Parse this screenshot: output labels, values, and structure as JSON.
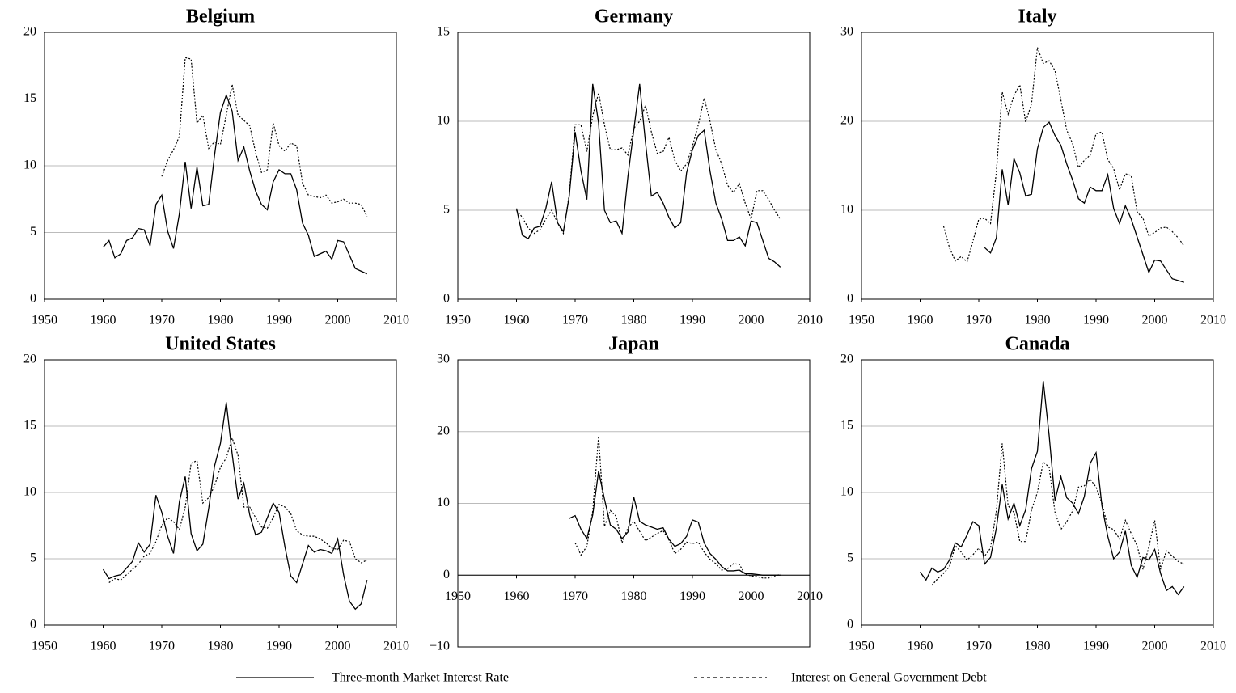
{
  "chart_data": [
    {
      "type": "line",
      "title": "Belgium",
      "x": [
        1960,
        1961,
        1962,
        1963,
        1964,
        1965,
        1966,
        1967,
        1968,
        1969,
        1970,
        1971,
        1972,
        1973,
        1974,
        1975,
        1976,
        1977,
        1978,
        1979,
        1980,
        1981,
        1982,
        1983,
        1984,
        1985,
        1986,
        1987,
        1988,
        1989,
        1990,
        1991,
        1992,
        1993,
        1994,
        1995,
        1996,
        1997,
        1998,
        1999,
        2000,
        2001,
        2002,
        2003,
        2004,
        2005
      ],
      "xlim": [
        1950,
        2010
      ],
      "xticks": [
        1950,
        1960,
        1970,
        1980,
        1990,
        2000,
        2010
      ],
      "ylim": [
        0,
        20
      ],
      "yticks": [
        0,
        5,
        10,
        15,
        20
      ],
      "grid": true,
      "series": [
        {
          "name": "Three-month Market Interest Rate",
          "style": "solid",
          "color": "#000000",
          "values": [
            3.9,
            4.4,
            3.1,
            3.4,
            4.4,
            4.6,
            5.3,
            5.2,
            4.0,
            7.1,
            7.8,
            5.1,
            3.8,
            6.4,
            10.3,
            6.8,
            9.9,
            7.0,
            7.1,
            10.8,
            14.0,
            15.3,
            14.1,
            10.4,
            11.4,
            9.6,
            8.1,
            7.1,
            6.7,
            8.8,
            9.7,
            9.4,
            9.4,
            8.2,
            5.7,
            4.8,
            3.2,
            3.4,
            3.6,
            3.0,
            4.4,
            4.3,
            3.3,
            2.3,
            2.1,
            1.9
          ]
        },
        {
          "name": "Interest on General Government Debt",
          "style": "dotted",
          "color": "#000000",
          "values": [
            null,
            null,
            null,
            null,
            null,
            null,
            null,
            null,
            null,
            null,
            9.2,
            10.4,
            11.2,
            12.2,
            18.1,
            18.0,
            13.2,
            13.8,
            11.3,
            11.8,
            11.6,
            13.8,
            16.1,
            13.8,
            13.4,
            13.0,
            11.0,
            9.5,
            9.7,
            13.2,
            11.5,
            11.1,
            11.7,
            11.5,
            8.7,
            7.8,
            7.7,
            7.6,
            7.8,
            7.2,
            7.3,
            7.5,
            7.2,
            7.2,
            7.1,
            6.2
          ]
        }
      ]
    },
    {
      "type": "line",
      "title": "Germany",
      "x": [
        1960,
        1961,
        1962,
        1963,
        1964,
        1965,
        1966,
        1967,
        1968,
        1969,
        1970,
        1971,
        1972,
        1973,
        1974,
        1975,
        1976,
        1977,
        1978,
        1979,
        1980,
        1981,
        1982,
        1983,
        1984,
        1985,
        1986,
        1987,
        1988,
        1989,
        1990,
        1991,
        1992,
        1993,
        1994,
        1995,
        1996,
        1997,
        1998,
        1999,
        2000,
        2001,
        2002,
        2003,
        2004,
        2005
      ],
      "xlim": [
        1950,
        2010
      ],
      "xticks": [
        1950,
        1960,
        1970,
        1980,
        1990,
        2000,
        2010
      ],
      "ylim": [
        0,
        15
      ],
      "yticks": [
        0,
        5,
        10,
        15
      ],
      "grid": true,
      "series": [
        {
          "style": "solid",
          "color": "#000000",
          "values": [
            5.1,
            3.6,
            3.4,
            4.0,
            4.1,
            5.1,
            6.6,
            4.3,
            3.8,
            5.8,
            9.4,
            7.2,
            5.6,
            12.1,
            9.9,
            5.0,
            4.3,
            4.4,
            3.7,
            6.9,
            9.5,
            12.1,
            8.8,
            5.8,
            6.0,
            5.4,
            4.6,
            4.0,
            4.3,
            7.1,
            8.4,
            9.2,
            9.5,
            7.2,
            5.4,
            4.5,
            3.3,
            3.3,
            3.5,
            3.0,
            4.4,
            4.3,
            3.3,
            2.3,
            2.1,
            1.8
          ]
        },
        {
          "style": "dotted",
          "color": "#000000",
          "values": [
            5.0,
            4.6,
            4.0,
            3.7,
            3.9,
            4.5,
            5.0,
            4.3,
            3.7,
            5.9,
            9.8,
            9.8,
            8.3,
            10.3,
            11.6,
            9.8,
            8.4,
            8.4,
            8.5,
            8.1,
            9.6,
            10.0,
            10.9,
            9.4,
            8.2,
            8.3,
            9.1,
            7.8,
            7.2,
            7.6,
            8.6,
            9.8,
            11.3,
            10.0,
            8.4,
            7.6,
            6.4,
            6.0,
            6.5,
            5.4,
            4.5,
            6.1,
            6.1,
            5.6,
            5.0,
            4.5
          ]
        }
      ]
    },
    {
      "type": "line",
      "title": "Italy",
      "x": [
        1960,
        1961,
        1962,
        1963,
        1964,
        1965,
        1966,
        1967,
        1968,
        1969,
        1970,
        1971,
        1972,
        1973,
        1974,
        1975,
        1976,
        1977,
        1978,
        1979,
        1980,
        1981,
        1982,
        1983,
        1984,
        1985,
        1986,
        1987,
        1988,
        1989,
        1990,
        1991,
        1992,
        1993,
        1994,
        1995,
        1996,
        1997,
        1998,
        1999,
        2000,
        2001,
        2002,
        2003,
        2004,
        2005
      ],
      "xlim": [
        1950,
        2010
      ],
      "xticks": [
        1950,
        1960,
        1970,
        1980,
        1990,
        2000,
        2010
      ],
      "ylim": [
        0,
        30
      ],
      "yticks": [
        0,
        10,
        20,
        30
      ],
      "grid": true,
      "series": [
        {
          "style": "solid",
          "color": "#000000",
          "values": [
            null,
            null,
            null,
            null,
            null,
            null,
            null,
            null,
            null,
            null,
            null,
            5.8,
            5.2,
            6.9,
            14.6,
            10.6,
            15.8,
            14.2,
            11.6,
            11.8,
            16.9,
            19.3,
            19.9,
            18.4,
            17.3,
            15.2,
            13.4,
            11.3,
            10.8,
            12.6,
            12.2,
            12.2,
            14.0,
            10.2,
            8.5,
            10.5,
            9.0,
            7.0,
            5.0,
            3.0,
            4.4,
            4.3,
            3.3,
            2.3,
            2.1,
            1.9
          ]
        },
        {
          "style": "dotted",
          "color": "#000000",
          "values": [
            null,
            null,
            null,
            null,
            8.2,
            5.8,
            4.3,
            4.8,
            4.2,
            6.5,
            9.0,
            9.1,
            8.5,
            14.3,
            23.3,
            20.8,
            22.9,
            24.1,
            19.9,
            22.0,
            28.3,
            26.5,
            26.8,
            25.7,
            22.4,
            19.0,
            17.5,
            14.8,
            15.6,
            16.2,
            18.6,
            18.8,
            15.7,
            14.7,
            12.3,
            14.1,
            13.9,
            9.8,
            9.1,
            7.1,
            7.5,
            8.0,
            8.1,
            7.6,
            6.9,
            6.0
          ]
        }
      ]
    },
    {
      "type": "line",
      "title": "United States",
      "x": [
        1960,
        1961,
        1962,
        1963,
        1964,
        1965,
        1966,
        1967,
        1968,
        1969,
        1970,
        1971,
        1972,
        1973,
        1974,
        1975,
        1976,
        1977,
        1978,
        1979,
        1980,
        1981,
        1982,
        1983,
        1984,
        1985,
        1986,
        1987,
        1988,
        1989,
        1990,
        1991,
        1992,
        1993,
        1994,
        1995,
        1996,
        1997,
        1998,
        1999,
        2000,
        2001,
        2002,
        2003,
        2004,
        2005
      ],
      "xlim": [
        1950,
        2010
      ],
      "xticks": [
        1950,
        1960,
        1970,
        1980,
        1990,
        2000,
        2010
      ],
      "ylim": [
        0,
        20
      ],
      "yticks": [
        0,
        5,
        10,
        15,
        20
      ],
      "grid": true,
      "series": [
        {
          "style": "solid",
          "color": "#000000",
          "values": [
            4.2,
            3.5,
            3.7,
            3.8,
            4.3,
            4.8,
            6.2,
            5.5,
            6.1,
            9.8,
            8.5,
            6.7,
            5.4,
            9.3,
            11.2,
            6.9,
            5.6,
            6.1,
            8.8,
            12.0,
            13.7,
            16.8,
            12.9,
            9.5,
            10.7,
            8.3,
            6.8,
            7.0,
            8.1,
            9.2,
            8.5,
            5.9,
            3.7,
            3.2,
            4.6,
            6.0,
            5.5,
            5.7,
            5.6,
            5.4,
            6.5,
            3.8,
            1.8,
            1.2,
            1.6,
            3.4
          ]
        },
        {
          "style": "dotted",
          "color": "#000000",
          "values": [
            null,
            3.2,
            3.5,
            3.4,
            3.8,
            4.2,
            4.6,
            5.2,
            5.4,
            6.3,
            7.5,
            8.1,
            7.8,
            7.2,
            8.9,
            12.2,
            12.4,
            9.2,
            9.6,
            10.5,
            11.9,
            12.6,
            14.1,
            12.8,
            8.9,
            8.9,
            8.1,
            7.4,
            7.3,
            8.1,
            9.1,
            8.9,
            8.4,
            7.1,
            6.8,
            6.7,
            6.7,
            6.5,
            6.2,
            5.8,
            5.7,
            6.4,
            6.3,
            5.0,
            4.7,
            4.9
          ]
        }
      ]
    },
    {
      "type": "line",
      "title": "Japan",
      "x": [
        1960,
        1961,
        1962,
        1963,
        1964,
        1965,
        1966,
        1967,
        1968,
        1969,
        1970,
        1971,
        1972,
        1973,
        1974,
        1975,
        1976,
        1977,
        1978,
        1979,
        1980,
        1981,
        1982,
        1983,
        1984,
        1985,
        1986,
        1987,
        1988,
        1989,
        1990,
        1991,
        1992,
        1993,
        1994,
        1995,
        1996,
        1997,
        1998,
        1999,
        2000,
        2001,
        2002,
        2003,
        2004,
        2005
      ],
      "xlim": [
        1950,
        2010
      ],
      "xticks": [
        1950,
        1960,
        1970,
        1980,
        1990,
        2000,
        2010
      ],
      "ylim": [
        -10,
        30
      ],
      "yticks": [
        {
          "value": -10,
          "label": "−10"
        },
        0,
        10,
        20,
        30
      ],
      "grid": true,
      "series": [
        {
          "style": "solid",
          "color": "#000000",
          "values": [
            null,
            null,
            null,
            null,
            null,
            null,
            null,
            null,
            null,
            7.9,
            8.3,
            6.4,
            5.1,
            8.4,
            14.5,
            10.6,
            7.0,
            6.4,
            5.1,
            6.0,
            10.9,
            7.5,
            7.0,
            6.7,
            6.4,
            6.6,
            5.0,
            4.0,
            4.4,
            5.4,
            7.7,
            7.4,
            4.5,
            3.0,
            2.2,
            1.2,
            0.6,
            0.6,
            0.7,
            0.2,
            0.2,
            0.1,
            0.0,
            0.0,
            0.0,
            0.0
          ]
        },
        {
          "style": "dotted",
          "color": "#000000",
          "values": [
            null,
            null,
            null,
            null,
            null,
            null,
            null,
            null,
            null,
            null,
            4.5,
            2.8,
            4.0,
            8.9,
            19.4,
            6.8,
            9.0,
            8.2,
            4.5,
            6.6,
            7.5,
            6.1,
            4.8,
            5.3,
            5.8,
            6.2,
            4.9,
            3.0,
            3.6,
            4.6,
            4.4,
            4.6,
            3.2,
            2.2,
            1.6,
            0.7,
            0.9,
            1.6,
            1.5,
            0.1,
            -0.1,
            -0.2,
            -0.4,
            -0.4,
            -0.1,
            0.1
          ]
        }
      ]
    },
    {
      "type": "line",
      "title": "Canada",
      "x": [
        1960,
        1961,
        1962,
        1963,
        1964,
        1965,
        1966,
        1967,
        1968,
        1969,
        1970,
        1971,
        1972,
        1973,
        1974,
        1975,
        1976,
        1977,
        1978,
        1979,
        1980,
        1981,
        1982,
        1983,
        1984,
        1985,
        1986,
        1987,
        1988,
        1989,
        1990,
        1991,
        1992,
        1993,
        1994,
        1995,
        1996,
        1997,
        1998,
        1999,
        2000,
        2001,
        2002,
        2003,
        2004,
        2005
      ],
      "xlim": [
        1950,
        2010
      ],
      "xticks": [
        1950,
        1960,
        1970,
        1980,
        1990,
        2000,
        2010
      ],
      "ylim": [
        0,
        20
      ],
      "yticks": [
        0,
        5,
        10,
        15,
        20
      ],
      "grid": true,
      "series": [
        {
          "style": "solid",
          "color": "#000000",
          "values": [
            4.0,
            3.4,
            4.3,
            4.0,
            4.2,
            4.9,
            6.2,
            5.9,
            6.8,
            7.8,
            7.5,
            4.6,
            5.1,
            7.3,
            10.6,
            8.0,
            9.2,
            7.5,
            8.7,
            11.8,
            13.1,
            18.4,
            14.3,
            9.4,
            11.2,
            9.6,
            9.2,
            8.4,
            9.7,
            12.2,
            13.0,
            9.0,
            6.7,
            5.0,
            5.5,
            7.1,
            4.5,
            3.6,
            5.1,
            4.9,
            5.7,
            3.9,
            2.6,
            2.9,
            2.3,
            2.9
          ]
        },
        {
          "style": "dotted",
          "color": "#000000",
          "values": [
            null,
            null,
            3.0,
            3.5,
            3.9,
            4.4,
            6.0,
            5.5,
            4.9,
            5.3,
            5.8,
            5.2,
            5.8,
            8.6,
            13.7,
            9.0,
            8.5,
            6.3,
            6.3,
            8.7,
            10.0,
            12.3,
            11.9,
            8.5,
            7.2,
            7.8,
            8.6,
            10.4,
            10.5,
            11.0,
            10.4,
            9.2,
            7.4,
            7.2,
            6.5,
            7.9,
            6.9,
            6.0,
            4.2,
            5.9,
            7.9,
            4.2,
            5.6,
            5.2,
            4.8,
            4.6
          ]
        }
      ]
    }
  ]
}
